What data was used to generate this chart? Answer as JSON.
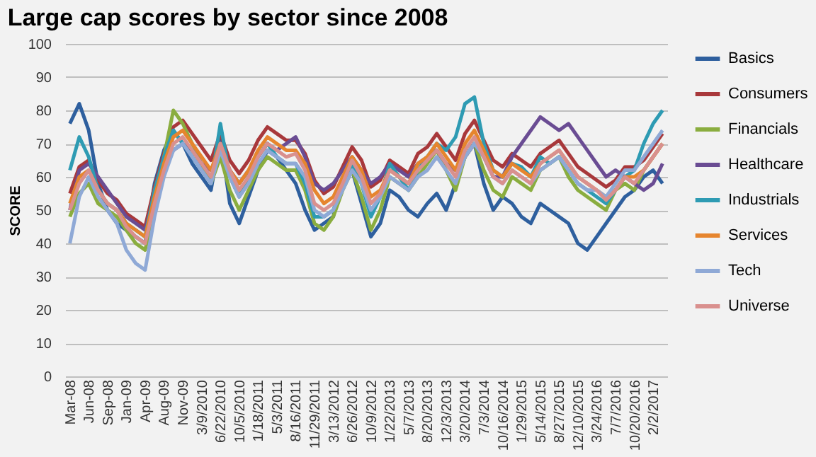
{
  "chart_data": {
    "type": "line",
    "title": "Large cap scores by sector since 2008",
    "ylabel": "SCORE",
    "categories": [
      "Mar-08",
      null,
      "Jun-08",
      null,
      "Sep-08",
      null,
      "Jan-09",
      null,
      "Apr-09",
      null,
      "Aug-09",
      null,
      "Nov-09",
      null,
      "3/9/2010",
      null,
      "6/22/2010",
      null,
      "10/5/2010",
      null,
      "1/18/2011",
      null,
      "5/3/2011",
      null,
      "8/16/2011",
      null,
      "11/29/2011",
      null,
      "3/13/2012",
      null,
      "6/26/2012",
      null,
      "10/9/2012",
      null,
      "1/22/2013",
      null,
      "5/7/2013",
      null,
      "8/20/2013",
      null,
      "12/3/2013",
      null,
      "3/20/2014",
      null,
      "7/3/2014",
      null,
      "10/16/2014",
      null,
      "1/29/2015",
      null,
      "5/14/2015",
      null,
      "8/27/2015",
      null,
      "12/10/2015",
      null,
      "3/24/2016",
      null,
      "7/7/2016",
      null,
      "10/20/2016",
      null,
      "2/2/2017",
      null
    ],
    "ylim": [
      0,
      100
    ],
    "yticks": [
      0,
      10,
      20,
      30,
      40,
      50,
      60,
      70,
      80,
      90,
      100
    ],
    "grid": "y",
    "legend": "right",
    "marker": "none",
    "line_style": "solid",
    "series": [
      {
        "name": "Basics",
        "color": "#2e5f9e",
        "values": [
          76,
          82,
          74,
          58,
          50,
          46,
          44,
          42,
          40,
          58,
          68,
          74,
          70,
          64,
          60,
          56,
          72,
          52,
          46,
          54,
          62,
          68,
          66,
          62,
          58,
          50,
          44,
          46,
          48,
          60,
          62,
          52,
          42,
          46,
          56,
          54,
          50,
          48,
          52,
          55,
          50,
          58,
          66,
          70,
          58,
          50,
          54,
          52,
          48,
          46,
          52,
          50,
          48,
          46,
          40,
          38,
          42,
          46,
          50,
          54,
          56,
          60,
          62,
          58
        ]
      },
      {
        "name": "Consumers",
        "color": "#a8383b",
        "values": [
          55,
          63,
          65,
          59,
          55,
          53,
          49,
          47,
          45,
          57,
          67,
          75,
          77,
          73,
          69,
          65,
          73,
          65,
          61,
          65,
          71,
          75,
          73,
          71,
          71,
          67,
          59,
          55,
          57,
          63,
          69,
          65,
          57,
          59,
          65,
          63,
          61,
          67,
          69,
          73,
          69,
          65,
          73,
          77,
          71,
          65,
          63,
          67,
          65,
          63,
          67,
          69,
          71,
          67,
          63,
          61,
          59,
          57,
          59,
          63,
          63,
          65,
          69,
          73
        ]
      },
      {
        "name": "Financials",
        "color": "#8aad3f",
        "values": [
          48,
          55,
          58,
          52,
          50,
          48,
          44,
          40,
          38,
          50,
          66,
          80,
          76,
          70,
          64,
          58,
          66,
          56,
          50,
          56,
          62,
          66,
          64,
          62,
          62,
          56,
          46,
          44,
          48,
          56,
          62,
          54,
          44,
          50,
          60,
          58,
          56,
          60,
          64,
          68,
          62,
          56,
          66,
          70,
          62,
          56,
          54,
          60,
          58,
          56,
          62,
          64,
          66,
          60,
          56,
          54,
          52,
          50,
          56,
          58,
          56,
          62,
          66,
          70
        ]
      },
      {
        "name": "Healthcare",
        "color": "#6a4c93",
        "values": [
          50,
          62,
          64,
          60,
          56,
          52,
          48,
          46,
          44,
          54,
          62,
          68,
          70,
          68,
          64,
          62,
          68,
          62,
          58,
          62,
          66,
          70,
          68,
          70,
          72,
          66,
          58,
          56,
          58,
          62,
          66,
          62,
          58,
          60,
          64,
          62,
          60,
          64,
          66,
          68,
          64,
          62,
          66,
          70,
          66,
          60,
          60,
          66,
          70,
          74,
          78,
          76,
          74,
          76,
          72,
          68,
          64,
          60,
          62,
          60,
          58,
          56,
          58,
          64
        ]
      },
      {
        "name": "Industrials",
        "color": "#2e9bb3",
        "values": [
          62,
          72,
          66,
          56,
          52,
          50,
          46,
          44,
          42,
          56,
          66,
          74,
          70,
          66,
          62,
          58,
          76,
          60,
          54,
          60,
          66,
          70,
          66,
          64,
          64,
          58,
          48,
          48,
          50,
          58,
          64,
          58,
          48,
          54,
          64,
          60,
          56,
          62,
          66,
          70,
          68,
          72,
          82,
          84,
          70,
          62,
          60,
          64,
          63,
          60,
          66,
          64,
          66,
          62,
          58,
          56,
          54,
          52,
          56,
          60,
          62,
          70,
          76,
          80
        ]
      },
      {
        "name": "Services",
        "color": "#e6852e",
        "values": [
          52,
          60,
          62,
          56,
          52,
          50,
          46,
          44,
          42,
          54,
          64,
          72,
          74,
          70,
          66,
          62,
          70,
          62,
          58,
          62,
          68,
          72,
          70,
          68,
          68,
          64,
          56,
          52,
          54,
          60,
          66,
          62,
          54,
          56,
          62,
          60,
          58,
          64,
          66,
          70,
          66,
          62,
          70,
          74,
          68,
          62,
          60,
          64,
          62,
          60,
          64,
          66,
          68,
          64,
          60,
          58,
          56,
          54,
          56,
          60,
          60,
          62,
          66,
          70
        ]
      },
      {
        "name": "Tech",
        "color": "#8fa9d6",
        "values": [
          40,
          54,
          60,
          54,
          50,
          46,
          38,
          34,
          32,
          48,
          60,
          68,
          70,
          66,
          62,
          58,
          68,
          60,
          54,
          58,
          64,
          68,
          66,
          64,
          64,
          60,
          50,
          48,
          50,
          56,
          62,
          58,
          50,
          54,
          60,
          58,
          56,
          60,
          62,
          66,
          62,
          58,
          66,
          70,
          66,
          60,
          58,
          62,
          60,
          58,
          62,
          64,
          66,
          62,
          58,
          56,
          56,
          54,
          58,
          62,
          62,
          66,
          70,
          74
        ]
      },
      {
        "name": "Universe",
        "color": "#d9908e",
        "values": [
          50,
          58,
          62,
          56,
          52,
          50,
          45,
          42,
          40,
          52,
          62,
          70,
          72,
          68,
          64,
          60,
          70,
          62,
          56,
          60,
          66,
          70,
          68,
          66,
          67,
          62,
          52,
          50,
          52,
          58,
          65,
          60,
          52,
          55,
          62,
          60,
          58,
          62,
          65,
          68,
          64,
          60,
          68,
          72,
          66,
          60,
          58,
          62,
          60,
          58,
          64,
          66,
          68,
          64,
          60,
          58,
          56,
          53,
          56,
          60,
          58,
          62,
          66,
          70
        ]
      }
    ]
  }
}
